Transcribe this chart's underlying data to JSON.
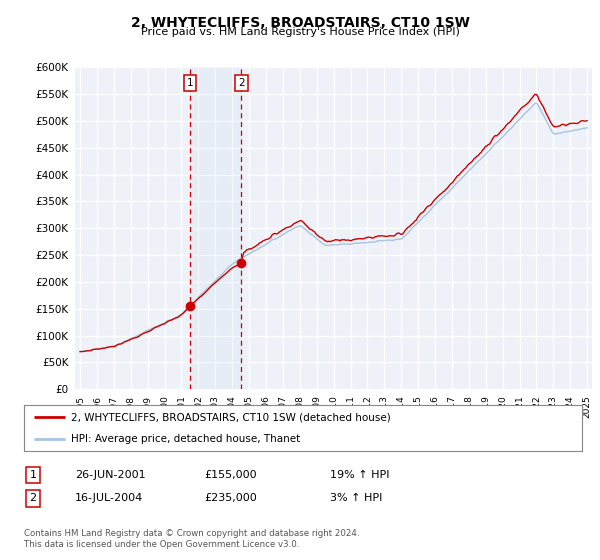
{
  "title": "2, WHYTECLIFFS, BROADSTAIRS, CT10 1SW",
  "subtitle": "Price paid vs. HM Land Registry's House Price Index (HPI)",
  "ylim": [
    0,
    600000
  ],
  "yticks": [
    0,
    50000,
    100000,
    150000,
    200000,
    250000,
    300000,
    350000,
    400000,
    450000,
    500000,
    550000,
    600000
  ],
  "hpi_color": "#a8c4e0",
  "price_color": "#cc0000",
  "vline_color": "#cc0000",
  "bg_color": "#eef2f8",
  "sale1_date": 2001.49,
  "sale1_price": 155000,
  "sale1_label": "1",
  "sale2_date": 2004.54,
  "sale2_price": 235000,
  "sale2_label": "2",
  "legend_red_label": "2, WHYTECLIFFS, BROADSTAIRS, CT10 1SW (detached house)",
  "legend_blue_label": "HPI: Average price, detached house, Thanet",
  "table_row1": [
    "1",
    "26-JUN-2001",
    "£155,000",
    "19% ↑ HPI"
  ],
  "table_row2": [
    "2",
    "16-JUL-2004",
    "£235,000",
    "3% ↑ HPI"
  ],
  "footnote": "Contains HM Land Registry data © Crown copyright and database right 2024.\nThis data is licensed under the Open Government Licence v3.0.",
  "xmin": 1995,
  "xmax": 2025
}
